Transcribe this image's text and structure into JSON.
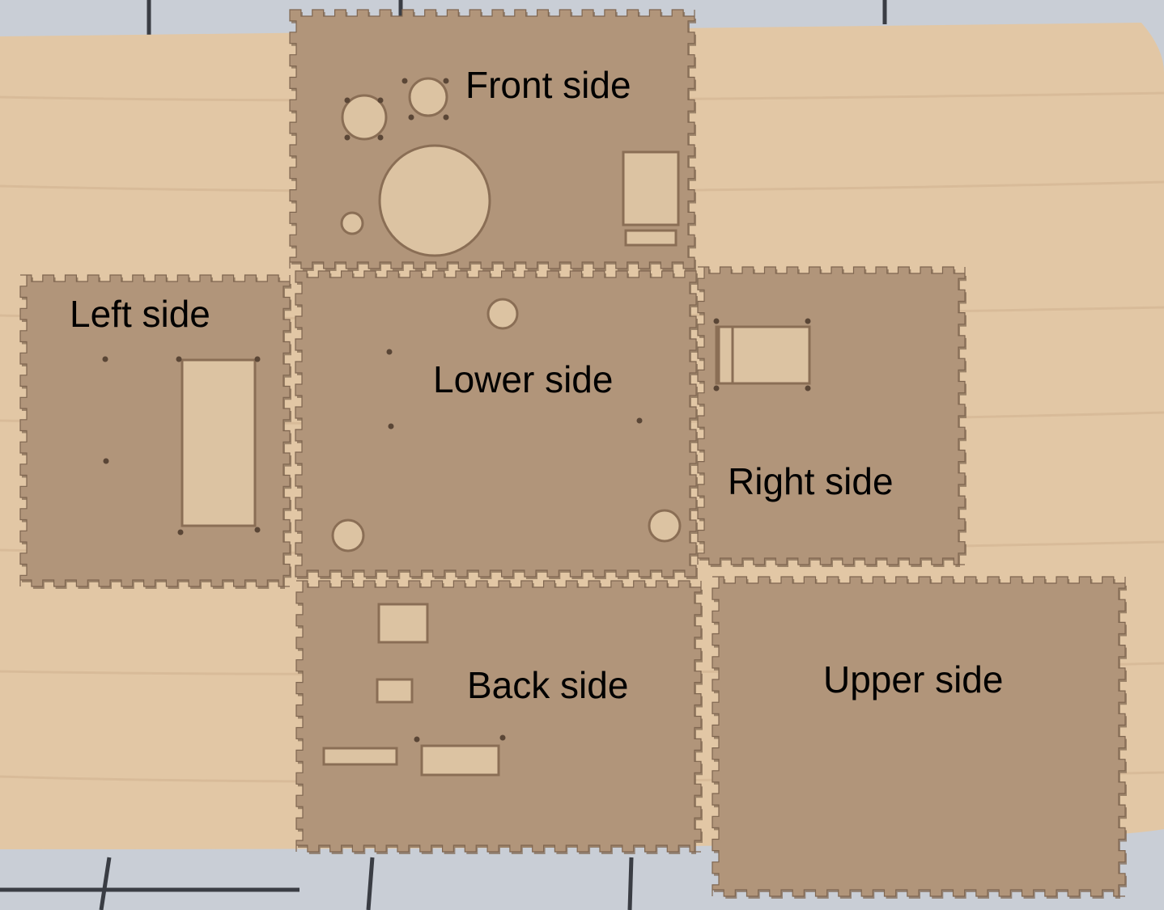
{
  "image": {
    "subject": "laser-cut MDF box panels laid out on a wooden table",
    "colors": {
      "tile_floor": "#c9ced6",
      "tile_grout": "#3a3d44",
      "table": "#e2c7a5",
      "table_grain": "#d4b794",
      "panel": "#b1957a",
      "panel_edge": "#7f6650",
      "cutout": "#dcc3a2",
      "cutout_shadow": "#8a6e55",
      "label_text": "#000000"
    }
  },
  "labels": {
    "front": "Front side",
    "left": "Left side",
    "lower": "Lower side",
    "right": "Right side",
    "back": "Back side",
    "upper": "Upper side"
  }
}
